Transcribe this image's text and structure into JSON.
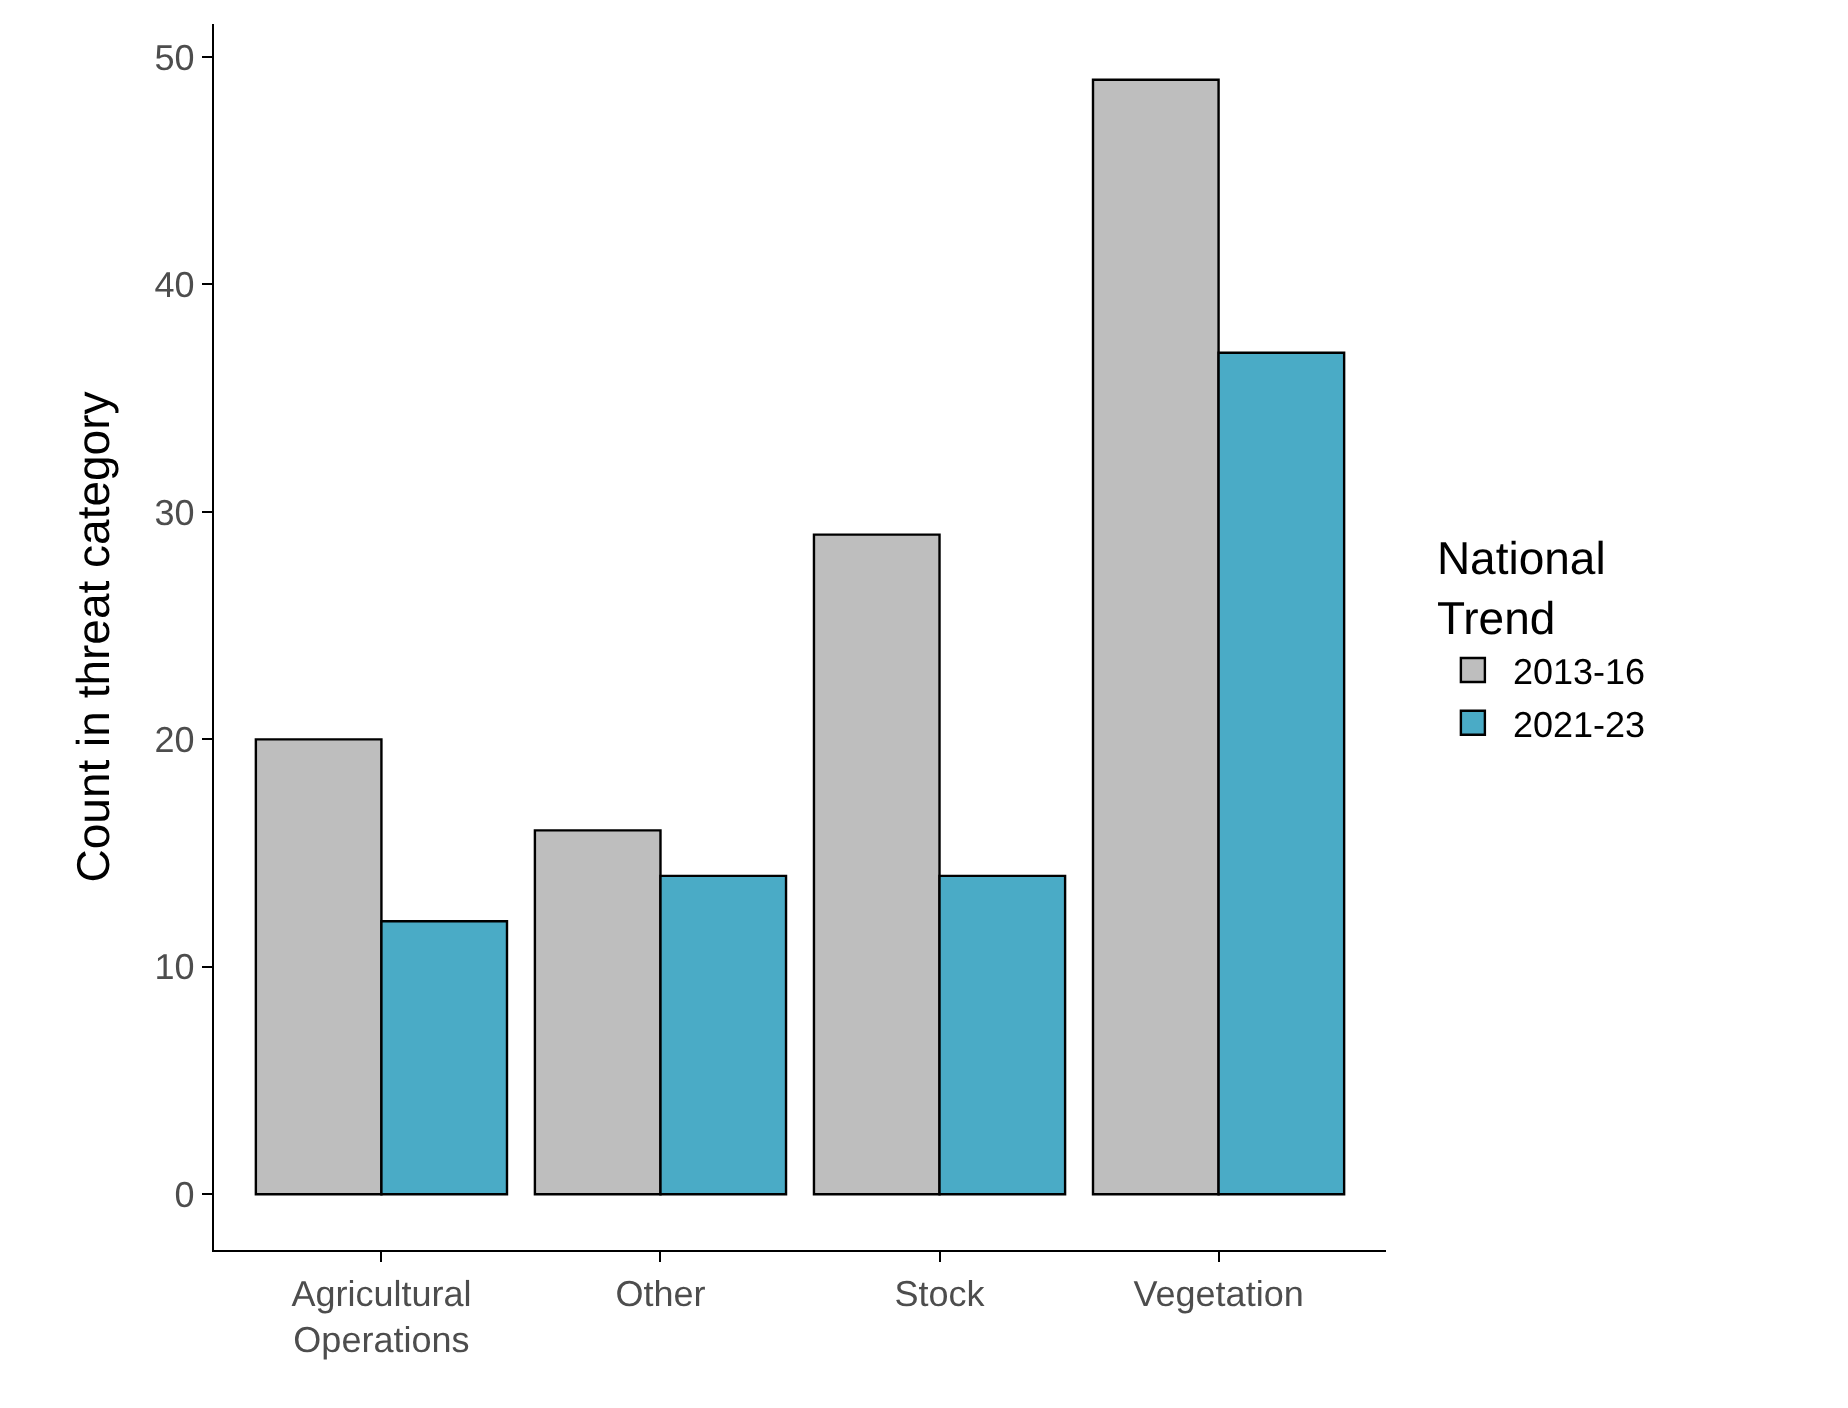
{
  "chart_data": {
    "type": "bar",
    "ylabel": "Count in threat category",
    "legend_title": "National\nTrend",
    "categories": [
      "Agricultural\nOperations",
      "Other",
      "Stock",
      "Vegetation"
    ],
    "series": [
      {
        "name": "2013-16",
        "color": "#bebebe",
        "values": [
          20,
          16,
          29,
          49
        ]
      },
      {
        "name": "2021-23",
        "color": "#4aabc6",
        "values": [
          12,
          14,
          14,
          37
        ]
      }
    ],
    "ylim": [
      -2.45,
      51.45
    ],
    "yticks": [
      0,
      10,
      20,
      30,
      40,
      50
    ],
    "legend": "right"
  }
}
